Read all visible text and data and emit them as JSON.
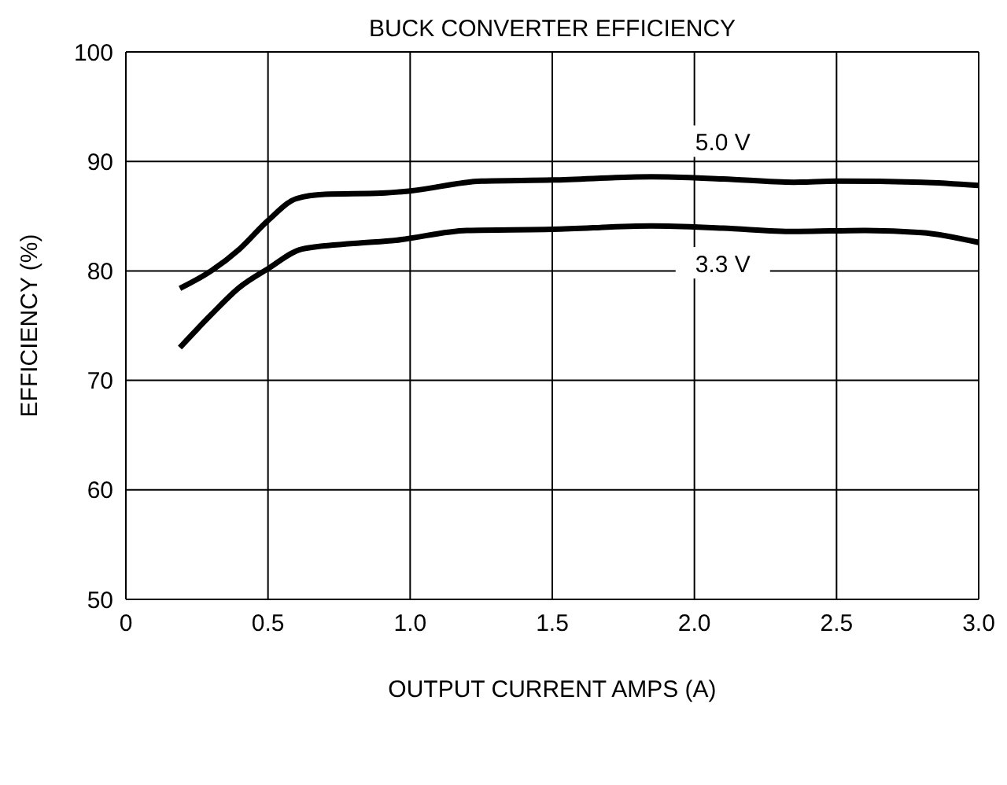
{
  "chart_data": {
    "type": "line",
    "title": "BUCK CONVERTER EFFICIENCY",
    "xlabel": "OUTPUT CURRENT AMPS (A)",
    "ylabel": "EFFICIENCY (%)",
    "series": [
      {
        "name": "5.0 V",
        "color": "#000000",
        "x": [
          0.19,
          0.3,
          0.4,
          0.5,
          0.6,
          0.7,
          0.9,
          1.0,
          1.25,
          1.5,
          1.85,
          2.1,
          2.35,
          2.5,
          2.8,
          3.0
        ],
        "values": [
          78.4,
          80,
          82,
          84.6,
          86.6,
          87,
          87.1,
          87.3,
          88.2,
          88.3,
          88.6,
          88.4,
          88.1,
          88.2,
          88.1,
          87.8
        ]
      },
      {
        "name": "3.3 V",
        "color": "#000000",
        "x": [
          0.19,
          0.3,
          0.4,
          0.5,
          0.62,
          0.8,
          0.95,
          1.2,
          1.5,
          1.85,
          2.1,
          2.35,
          2.6,
          2.8,
          3.0
        ],
        "values": [
          73,
          76,
          78.5,
          80.2,
          82,
          82.5,
          82.8,
          83.7,
          83.8,
          84.1,
          83.9,
          83.6,
          83.7,
          83.5,
          82.6
        ]
      }
    ],
    "xlim": [
      0,
      3
    ],
    "xticks": [
      0,
      0.5,
      {
        "value": 1,
        "label": "1.0"
      },
      1.5,
      {
        "value": 2,
        "label": "2.0"
      },
      2.5,
      {
        "value": 3,
        "label": "3.0"
      }
    ],
    "ylim": [
      50,
      100
    ],
    "yticks": [
      50,
      60,
      70,
      80,
      90,
      100
    ],
    "grid": true,
    "line_style": "solid",
    "marker": "none"
  }
}
